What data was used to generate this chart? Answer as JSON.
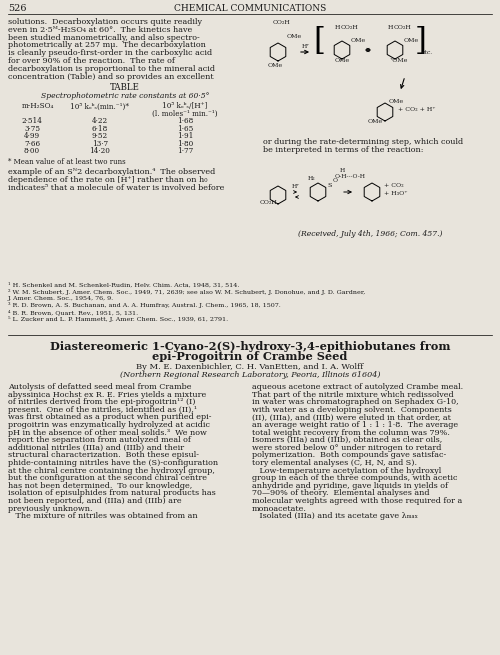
{
  "page_number": "526",
  "journal_header": "CHEMICAL COMMUNICATIONS",
  "bg_color": "#e8e4dc",
  "text_color": "#1a1a1a",
  "top_left_lines": [
    "solutions.  Decarboxylation occurs quite readily",
    "even in 2·5ᴹ-H₂SO₄ at 60°.  The kinetics have",
    "been studied manometrically, and also spectro-",
    "photometrically at 257 mμ.  The decarboxylation",
    "is cleanly pseudo-first-order in the carboxylic acid",
    "for over 90% of the reaction.  The rate of",
    "decarboxylation is proportional to the mineral acid",
    "concentration (Table) and so provides an excellent"
  ],
  "table_title": "TABLE",
  "table_subtitle": "Spectrophotometric rate constants at 60·5°",
  "table_col1_header": "m-H₂SO₄",
  "table_col2_header": "10⁵ kₒᵇₛ(min.⁻¹)*",
  "table_col3_header_1": "10⁵ kₒᵇₛ/[H⁺]",
  "table_col3_header_2": "(l. moles⁻¹ min.⁻¹)",
  "table_data": [
    [
      "2·514",
      "4·22",
      "1·68"
    ],
    [
      "3·75",
      "6·18",
      "1·65"
    ],
    [
      "4·99",
      "9·52",
      "1·91"
    ],
    [
      "7·66",
      "13·7",
      "1·80"
    ],
    [
      "8·00",
      "14·20",
      "1·77"
    ]
  ],
  "table_footnote": "* Mean value of at least two runs",
  "bottom_left_lines": [
    "example of an Sᴺ2 decarboxylation.⁴  The observed",
    "dependence of the rate on [H⁺] rather than on h₀",
    "indicates⁵ that a molecule of water is involved before"
  ],
  "footnotes": [
    "¹ H. Schenkel and M. Schenkel-Rudin, Helv. Chim. Acta, 1948, 31, 514.",
    "² W. M. Schubert, J. Amer. Chem. Soc., 1949, 71, 2639; see also W. M. Schubert, J. Donohue, and J. D. Gardner,",
    "J. Amer. Chem. Soc., 1954, 76, 9.",
    "³ R. D. Brown, A. S. Buchanan, and A. A. Humfray, Austral. J. Chem., 1965, 18, 1507.",
    "⁴ B. R. Brown, Quart. Rev., 1951, 5, 131.",
    "⁵ L. Zucker and L. P. Hammett, J. Amer. Chem. Soc., 1939, 61, 2791."
  ],
  "right_caption": "(Received, July 4th, 1966; Com. 457.)",
  "article_title_line1": "Diastereomeric 1-Cyano-2(S)-hydroxy-3,4-epithiobutanes from",
  "article_title_line2": "epi-Progoitrin of Crambe Seed",
  "article_authors": "By M. E. Daxenbichler, C. H. VanEtten, and I. A. Wolff",
  "article_affiliation": "(Northern Regional Research Laboratory, Peoria, Illinois 61604)",
  "article_left_col": [
    "Autolysis of defatted seed meal from Crambe",
    "abyssinica Hochst ex R. E. Fries yields a mixture",
    "of nitriles derived from the epi-progoitrin¹² (I)",
    "present.  One of the nitriles, identified as (II),¹",
    "was first obtained as a product when purified epi-",
    "progoitrin was enzymatically hydrolyzed at acidic",
    "pH in the absence of other meal solids.³  We now",
    "report the separation from autolyzed meal of",
    "additional nitriles (IIIa) and (IIIb) and their",
    "structural characterization.  Both these episul-",
    "phide-containing nitriles have the (S)-configuration",
    "at the chiral centre containing the hydroxyl group,",
    "but the configuration at the second chiral centre",
    "has not been determined.  To our knowledge,",
    "isolation of episulphides from natural products has",
    "not been reported, and (IIIa) and (IIIb) are",
    "previously unknown.",
    "   The mixture of nitriles was obtained from an"
  ],
  "article_right_col": [
    "aqueous acetone extract of autolyzed Crambe meal.",
    "That part of the nitrile mixture which redissolved",
    "in water was chromatographed on Sephadex G-10,",
    "with water as a developing solvent.  Components",
    "(II), (IIIa), and (IIIb) were eluted in that order, at",
    "an average weight ratio of 1 : 1 : 1·8.  The average",
    "total weight recovery from the column was 79%.",
    "Isomers (IIIa) and (IIIb), obtained as clear oils,",
    "were stored below 0° under nitrogen to retard",
    "polymerization.  Both compounds gave satisfac-",
    "tory elemental analyses (C, H, N, and S).",
    "   Low-temperature acetylation of the hydroxyl",
    "group in each of the three compounds, with acetic",
    "anhydride and pyridine, gave liquids in yields of",
    "70—90% of theory.  Elemental analyses and",
    "molecular weights agreed with those required for a",
    "monoacetate.",
    "   Isolated (IIIa) and its acetate gave λₘₐₓ"
  ],
  "or_during_line1": "or during the rate-determining step, which could",
  "or_during_line2": "be interpreted in terms of the reaction:"
}
